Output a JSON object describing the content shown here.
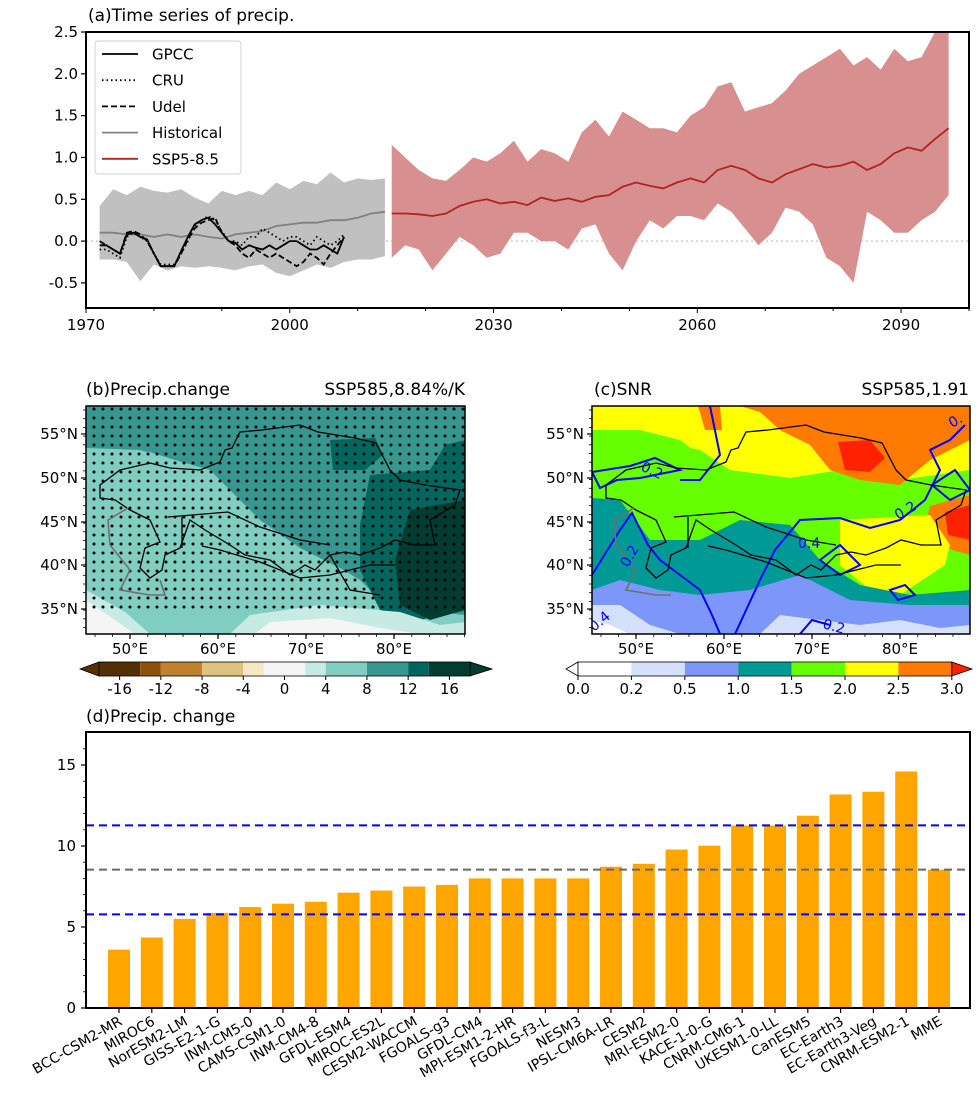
{
  "chart_data": [
    {
      "type": "line",
      "panel": "a",
      "title": "(a)Time series of precip.",
      "xlim": [
        1970,
        2100
      ],
      "ylim": [
        -0.8,
        2.5
      ],
      "xticks": [
        1970,
        2000,
        2030,
        2060,
        2090
      ],
      "xtick_labels": [
        "1970",
        "2000",
        "2030",
        "2060",
        "2090"
      ],
      "yticks": [
        -0.5,
        0.0,
        0.5,
        1.0,
        1.5,
        2.0,
        2.5
      ],
      "ytick_labels": [
        "-0.5",
        "0.0",
        "0.5",
        "1.0",
        "1.5",
        "2.0",
        "2.5"
      ],
      "zero_line": 0.0,
      "legend_position": "top-left",
      "legend": [
        "GPCC",
        "CRU",
        "Udel",
        "Historical",
        "SSP5-8.5"
      ],
      "colors": {
        "obs": "#000000",
        "historical": "#808080",
        "historical_band": "#c0c0c0",
        "ssp": "#b22222",
        "ssp_band": "#d88f90",
        "zero": "#cccccc"
      },
      "series": [
        {
          "name": "GPCC",
          "style": "solid",
          "x": [
            1972,
            1973,
            1974,
            1975,
            1976,
            1977,
            1978,
            1979,
            1980,
            1981,
            1982,
            1983,
            1984,
            1985,
            1986,
            1987,
            1988,
            1989,
            1990,
            1991,
            1992,
            1993,
            1994,
            1995,
            1996,
            1997,
            1998,
            1999,
            2000,
            2001,
            2002,
            2003,
            2004,
            2005,
            2006,
            2007,
            2008,
            2009,
            2010,
            2011,
            2012
          ],
          "y": [
            -0.05,
            -0.05,
            -0.1,
            -0.15,
            0.08,
            0.1,
            0.05,
            0.02,
            -0.15,
            -0.3,
            -0.3,
            -0.3,
            -0.12,
            0.05,
            0.2,
            0.25,
            0.28,
            0.2,
            0.1,
            0.0,
            -0.02,
            -0.1,
            -0.05,
            -0.08,
            -0.1,
            -0.05,
            -0.1,
            -0.05,
            0.0,
            0.0,
            -0.05,
            -0.1,
            -0.1,
            -0.05,
            -0.1,
            -0.15,
            0.05,
            null,
            null,
            null,
            null
          ]
        },
        {
          "name": "CRU",
          "style": "dotted",
          "x": [
            1972,
            1973,
            1974,
            1975,
            1976,
            1977,
            1978,
            1979,
            1980,
            1981,
            1982,
            1983,
            1984,
            1985,
            1986,
            1987,
            1988,
            1989,
            1990,
            1991,
            1992,
            1993,
            1994,
            1995,
            1996,
            1997,
            1998,
            1999,
            2000,
            2001,
            2002,
            2003,
            2004,
            2005,
            2006,
            2007,
            2008
          ],
          "y": [
            -0.1,
            -0.1,
            -0.15,
            -0.2,
            0.05,
            0.1,
            0.05,
            0.0,
            -0.15,
            -0.28,
            -0.28,
            -0.28,
            -0.15,
            0.0,
            0.18,
            0.25,
            0.3,
            0.25,
            0.12,
            0.0,
            0.0,
            -0.05,
            0.05,
            0.05,
            0.15,
            0.1,
            0.05,
            0.0,
            0.05,
            0.05,
            0.0,
            -0.05,
            0.05,
            0.0,
            -0.05,
            0.0,
            0.08
          ]
        },
        {
          "name": "Udel",
          "style": "dashed",
          "x": [
            1972,
            1973,
            1974,
            1975,
            1976,
            1977,
            1978,
            1979,
            1980,
            1981,
            1982,
            1983,
            1984,
            1985,
            1986,
            1987,
            1988,
            1989,
            1990,
            1991,
            1992,
            1993,
            1994,
            1995,
            1996,
            1997,
            1998,
            1999,
            2000,
            2001,
            2002,
            2003,
            2004,
            2005,
            2006,
            2007,
            2008
          ],
          "y": [
            0.0,
            -0.05,
            -0.1,
            -0.15,
            0.1,
            0.12,
            0.08,
            0.0,
            -0.15,
            -0.3,
            -0.3,
            -0.3,
            -0.15,
            0.02,
            0.15,
            0.22,
            0.25,
            0.28,
            0.1,
            0.0,
            -0.05,
            -0.15,
            -0.2,
            -0.1,
            -0.15,
            -0.2,
            -0.15,
            -0.2,
            -0.25,
            -0.3,
            -0.25,
            -0.15,
            -0.2,
            -0.28,
            -0.15,
            -0.05,
            0.05
          ]
        },
        {
          "name": "Historical",
          "style": "solid",
          "x": [
            1972,
            1974,
            1976,
            1978,
            1980,
            1982,
            1984,
            1986,
            1988,
            1990,
            1992,
            1994,
            1996,
            1998,
            2000,
            2002,
            2004,
            2006,
            2008,
            2010,
            2012,
            2014
          ],
          "y": [
            0.1,
            0.1,
            0.08,
            0.08,
            0.05,
            0.08,
            0.05,
            0.08,
            0.05,
            0.03,
            0.08,
            0.1,
            0.12,
            0.18,
            0.2,
            0.22,
            0.22,
            0.25,
            0.25,
            0.28,
            0.33,
            0.35
          ],
          "band_upper": [
            0.42,
            0.62,
            0.55,
            0.65,
            0.6,
            0.58,
            0.62,
            0.52,
            0.45,
            0.6,
            0.55,
            0.6,
            0.55,
            0.7,
            0.62,
            0.72,
            0.68,
            0.82,
            0.7,
            0.75,
            0.73,
            0.75
          ],
          "band_lower": [
            -0.22,
            -0.22,
            -0.25,
            -0.48,
            -0.28,
            -0.35,
            -0.3,
            -0.32,
            -0.3,
            -0.32,
            -0.35,
            -0.3,
            -0.28,
            -0.38,
            -0.42,
            -0.35,
            -0.28,
            -0.32,
            -0.25,
            -0.22,
            -0.22,
            -0.18
          ]
        },
        {
          "name": "SSP5-8.5",
          "style": "solid",
          "x": [
            2015,
            2017,
            2019,
            2021,
            2023,
            2025,
            2027,
            2029,
            2031,
            2033,
            2035,
            2037,
            2039,
            2041,
            2043,
            2045,
            2047,
            2049,
            2051,
            2053,
            2055,
            2057,
            2059,
            2061,
            2063,
            2065,
            2067,
            2069,
            2071,
            2073,
            2075,
            2077,
            2079,
            2081,
            2083,
            2085,
            2087,
            2089,
            2091,
            2093,
            2095,
            2097
          ],
          "y": [
            0.33,
            0.33,
            0.32,
            0.3,
            0.33,
            0.42,
            0.47,
            0.5,
            0.45,
            0.47,
            0.43,
            0.52,
            0.48,
            0.51,
            0.47,
            0.53,
            0.55,
            0.65,
            0.7,
            0.66,
            0.63,
            0.7,
            0.75,
            0.7,
            0.85,
            0.9,
            0.85,
            0.75,
            0.7,
            0.8,
            0.86,
            0.92,
            0.88,
            0.9,
            0.95,
            0.85,
            0.92,
            1.05,
            1.12,
            1.08,
            1.22,
            1.35
          ],
          "band_upper": [
            1.15,
            1.0,
            0.85,
            0.75,
            0.72,
            0.85,
            1.0,
            0.95,
            1.05,
            1.2,
            0.95,
            1.1,
            1.05,
            0.95,
            1.3,
            1.45,
            1.25,
            1.55,
            1.45,
            1.35,
            1.35,
            1.3,
            1.5,
            1.6,
            1.85,
            1.9,
            1.55,
            1.6,
            1.65,
            1.8,
            2.0,
            2.1,
            2.2,
            2.3,
            2.1,
            2.2,
            2.05,
            2.3,
            2.15,
            2.2,
            2.5,
            2.5
          ],
          "band_lower": [
            -0.2,
            -0.05,
            -0.1,
            -0.35,
            -0.15,
            0.05,
            -0.05,
            -0.2,
            -0.15,
            0.1,
            0.1,
            0.0,
            0.0,
            -0.1,
            0.15,
            0.2,
            -0.15,
            -0.35,
            0.0,
            0.25,
            0.15,
            0.3,
            0.3,
            0.25,
            0.45,
            0.35,
            0.15,
            -0.05,
            0.1,
            0.4,
            0.35,
            0.2,
            -0.2,
            -0.3,
            -0.5,
            0.35,
            0.25,
            0.1,
            0.1,
            0.25,
            0.35,
            0.55
          ]
        }
      ]
    },
    {
      "type": "heatmap",
      "panel": "b",
      "title_left": "(b)Precip.change",
      "title_right": "SSP585,8.84%/K",
      "lat_ticks": [
        "55°N",
        "50°N",
        "45°N",
        "40°N",
        "35°N"
      ],
      "lon_ticks": [
        "50°E",
        "60°E",
        "70°E",
        "80°E"
      ],
      "colorbar": {
        "ticks": [
          "-16",
          "-12",
          "-8",
          "-4",
          "0",
          "4",
          "8",
          "12",
          "16"
        ],
        "levels": [
          -18,
          -14,
          -12,
          -8,
          -4,
          -2,
          2,
          4,
          8,
          12,
          14,
          18
        ],
        "colors": [
          "#543005",
          "#8c510a",
          "#bf812d",
          "#dfc27d",
          "#f6e8c3",
          "#f5f5f5",
          "#c7eae5",
          "#80cdc1",
          "#35978f",
          "#01665e",
          "#003c30"
        ],
        "extend": "both"
      },
      "stippling": "significant"
    },
    {
      "type": "heatmap",
      "panel": "c",
      "title_left": "(c)SNR",
      "title_right": "SSP585,1.91",
      "lat_ticks": [
        "55°N",
        "50°N",
        "45°N",
        "40°N",
        "35°N"
      ],
      "lon_ticks": [
        "50°E",
        "60°E",
        "70°E",
        "80°E"
      ],
      "contour_labels": [
        "0.2",
        "0.2",
        "0.2",
        "0.4",
        "0.2",
        "0.4",
        "0."
      ],
      "contour_color": "#0000ff",
      "colorbar": {
        "ticks": [
          "0.0",
          "0.2",
          "0.5",
          "1.0",
          "1.5",
          "2.0",
          "2.5",
          "3.0"
        ],
        "colors": [
          "#ffffff",
          "#d5e0fb",
          "#7d96fa",
          "#009a96",
          "#66ff00",
          "#ffff00",
          "#ff7a00",
          "#ff2200"
        ],
        "extend": "both"
      }
    },
    {
      "type": "bar",
      "panel": "d",
      "title": "(d)Precip. change",
      "ylim": [
        0,
        17
      ],
      "yticks": [
        0,
        5,
        10,
        15
      ],
      "ytick_labels": [
        "0",
        "5",
        "10",
        "15"
      ],
      "bar_color": "#ffa500",
      "categories": [
        "BCC-CSM2-MR",
        "MIROC6",
        "NorESM2-LM",
        "GISS-E2-1-G",
        "INM-CM5-0",
        "CAMS-CSM1-0",
        "INM-CM4-8",
        "GFDL-ESM4",
        "MIROC-ES2L",
        "CESM2-WACCM",
        "FGOALS-g3",
        "GFDL-CM4",
        "MPI-ESM1-2-HR",
        "FGOALS-f3-L",
        "NESM3",
        "IPSL-CM6A-LR",
        "CESM2",
        "MRI-ESM2-0",
        "KACE-1-0-G",
        "CNRM-CM6-1",
        "UKESM1-0-LL",
        "CanESM5",
        "EC-Earth3",
        "EC-Earth3-Veg",
        "CNRM-ESM2-1",
        "MME"
      ],
      "values": [
        3.6,
        4.35,
        5.5,
        5.87,
        6.23,
        6.44,
        6.56,
        7.12,
        7.25,
        7.5,
        7.6,
        8.0,
        8.0,
        8.0,
        8.0,
        8.72,
        8.9,
        9.78,
        10.02,
        11.26,
        11.26,
        11.87,
        13.18,
        13.35,
        14.6,
        8.54
      ],
      "hlines": [
        {
          "value": 11.27,
          "color": "#0000ff",
          "style": "dashed"
        },
        {
          "value": 8.54,
          "color": "#696969",
          "style": "dashed"
        },
        {
          "value": 5.78,
          "color": "#0000ff",
          "style": "dashed"
        }
      ]
    }
  ]
}
